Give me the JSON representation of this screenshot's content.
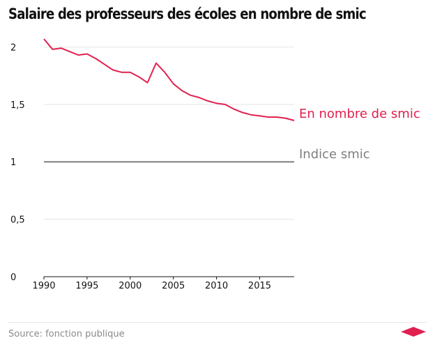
{
  "chart_data": {
    "type": "line",
    "title": "Salaire des professeurs des écoles en nombre de smic",
    "xlabel": "",
    "ylabel": "",
    "xlim": [
      1990,
      2019
    ],
    "ylim": [
      0,
      2.1
    ],
    "x_ticks": [
      1990,
      1995,
      2000,
      2005,
      2010,
      2015
    ],
    "y_ticks": [
      0,
      0.5,
      1,
      1.5,
      2
    ],
    "y_tick_labels": [
      "0",
      "0,5",
      "1",
      "1,5",
      "2"
    ],
    "grid": "horizontal",
    "legend": "direct labels at right end of lines",
    "series": [
      {
        "name": "En nombre de smic",
        "color": "#e0204e",
        "x": [
          1990,
          1991,
          1992,
          1993,
          1994,
          1995,
          1996,
          1997,
          1998,
          1999,
          2000,
          2001,
          2002,
          2003,
          2004,
          2005,
          2006,
          2007,
          2008,
          2009,
          2010,
          2011,
          2012,
          2013,
          2014,
          2015,
          2016,
          2017,
          2018,
          2019
        ],
        "values": [
          2.07,
          1.98,
          1.99,
          1.96,
          1.93,
          1.94,
          1.9,
          1.85,
          1.8,
          1.78,
          1.78,
          1.74,
          1.69,
          1.86,
          1.78,
          1.68,
          1.62,
          1.58,
          1.56,
          1.53,
          1.51,
          1.5,
          1.46,
          1.43,
          1.41,
          1.4,
          1.39,
          1.39,
          1.38,
          1.36
        ]
      },
      {
        "name": "Indice smic",
        "color": "#7f7f7f",
        "x": [
          1990,
          2019
        ],
        "values": [
          1,
          1
        ]
      }
    ]
  },
  "footer": {
    "source": "Source: fonction publique",
    "logo_icon": "red-diamond-logo-icon",
    "logo_color": "#e0204e"
  }
}
